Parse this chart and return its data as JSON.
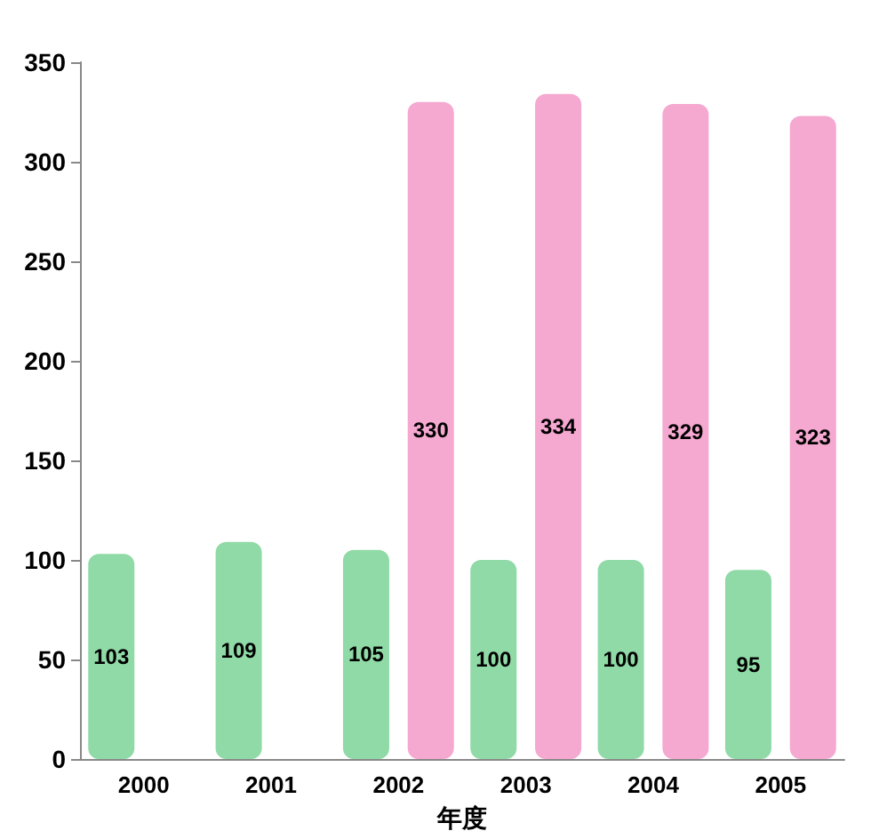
{
  "chart_data": {
    "type": "bar",
    "xlabel": "年度",
    "categories": [
      "2000",
      "2001",
      "2002",
      "2003",
      "2004",
      "2005"
    ],
    "series": [
      {
        "color": "#8fdaa6",
        "values": [
          103,
          109,
          105,
          100,
          100,
          95
        ]
      },
      {
        "color": "#f5a8d0",
        "values": [
          null,
          null,
          330,
          334,
          329,
          323
        ]
      }
    ],
    "ylim": [
      0,
      350
    ],
    "yticks": [
      0,
      50,
      100,
      150,
      200,
      250,
      300,
      350
    ],
    "data_labels": true,
    "grid": false
  }
}
